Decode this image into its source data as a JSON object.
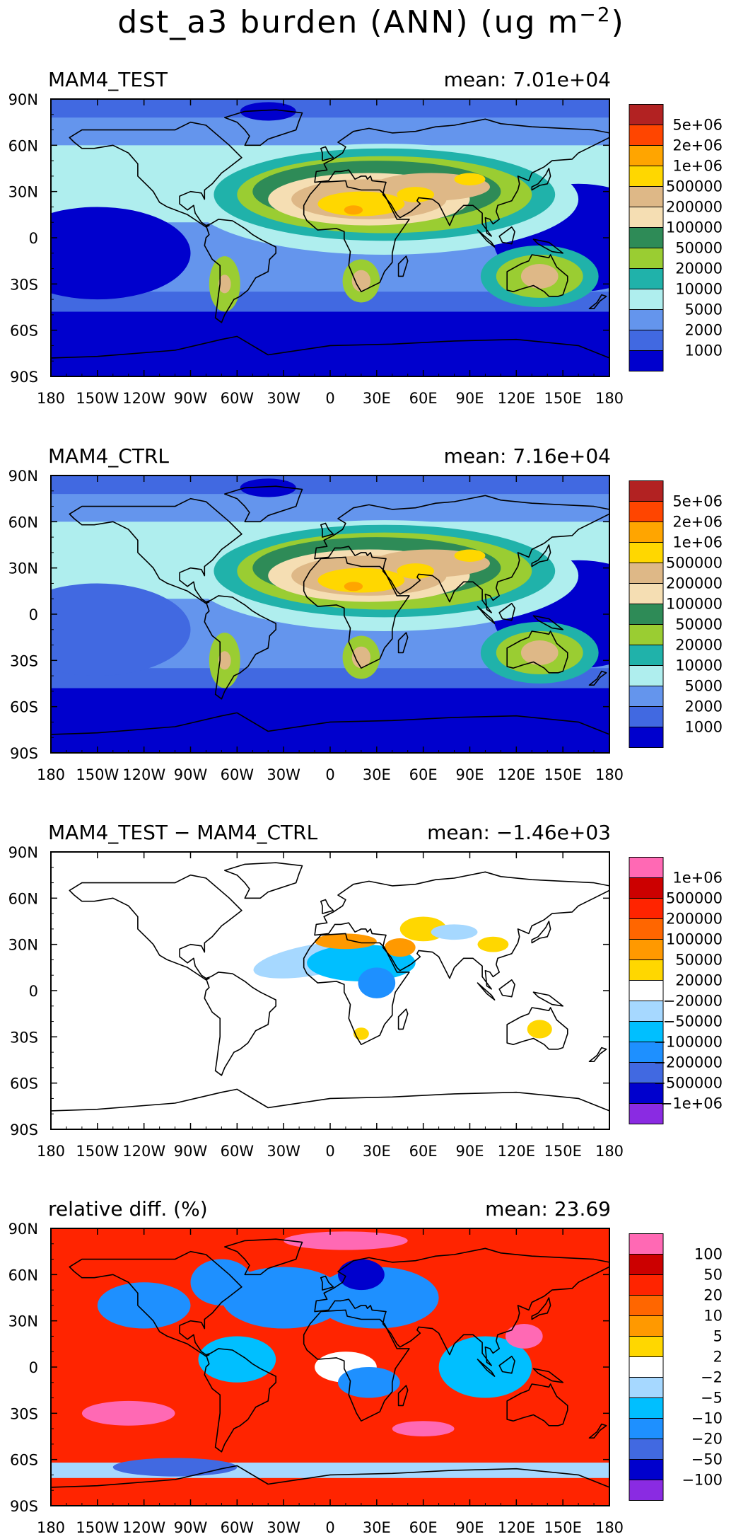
{
  "figure": {
    "title_main": "dst_a3 burden (ANN) (ug m",
    "title_sup": "−2",
    "title_end": ")"
  },
  "chart_data": [
    {
      "type": "heatmap",
      "title": "MAM4_TEST",
      "mean_label": "mean: 7.01e+04",
      "x_ticks": [
        "180",
        "150W",
        "120W",
        "90W",
        "60W",
        "30W",
        "0",
        "30E",
        "60E",
        "90E",
        "120E",
        "150E",
        "180"
      ],
      "y_ticks": [
        "90N",
        "60N",
        "30N",
        "0",
        "30S",
        "60S",
        "90S"
      ],
      "colorbar": {
        "labels": [
          "5e+06",
          "2e+06",
          "1e+06",
          "500000",
          "200000",
          "100000",
          "50000",
          "20000",
          "10000",
          "5000",
          "2000",
          "1000"
        ],
        "colors": [
          "#b22222",
          "#ff4500",
          "#ffa500",
          "#ffd700",
          "#deb887",
          "#f5deb3",
          "#2e8b57",
          "#9acd32",
          "#20b2aa",
          "#afeeee",
          "#6495ed",
          "#4169e1",
          "#0000cd"
        ]
      },
      "land_fill": "#6495ed"
    },
    {
      "type": "heatmap",
      "title": "MAM4_CTRL",
      "mean_label": "mean: 7.16e+04",
      "x_ticks": [
        "180",
        "150W",
        "120W",
        "90W",
        "60W",
        "30W",
        "0",
        "30E",
        "60E",
        "90E",
        "120E",
        "150E",
        "180"
      ],
      "y_ticks": [
        "90N",
        "60N",
        "30N",
        "0",
        "30S",
        "60S",
        "90S"
      ],
      "colorbar": {
        "labels": [
          "5e+06",
          "2e+06",
          "1e+06",
          "500000",
          "200000",
          "100000",
          "50000",
          "20000",
          "10000",
          "5000",
          "2000",
          "1000"
        ],
        "colors": [
          "#b22222",
          "#ff4500",
          "#ffa500",
          "#ffd700",
          "#deb887",
          "#f5deb3",
          "#2e8b57",
          "#9acd32",
          "#20b2aa",
          "#afeeee",
          "#6495ed",
          "#4169e1",
          "#0000cd"
        ]
      },
      "land_fill": "#6495ed"
    },
    {
      "type": "heatmap",
      "title": "MAM4_TEST − MAM4_CTRL",
      "mean_label": "mean: −1.46e+03",
      "x_ticks": [
        "180",
        "150W",
        "120W",
        "90W",
        "60W",
        "30W",
        "0",
        "30E",
        "60E",
        "90E",
        "120E",
        "150E",
        "180"
      ],
      "y_ticks": [
        "90N",
        "60N",
        "30N",
        "0",
        "30S",
        "60S",
        "90S"
      ],
      "colorbar": {
        "labels": [
          "1e+06",
          "500000",
          "200000",
          "100000",
          "50000",
          "20000",
          "−20000",
          "−50000",
          "−100000",
          "−200000",
          "−500000",
          "−1e+06"
        ],
        "colors": [
          "#ff69b4",
          "#cc0000",
          "#ff2400",
          "#ff6600",
          "#ff9900",
          "#ffd700",
          "#ffffff",
          "#a6d8ff",
          "#00bfff",
          "#1e90ff",
          "#4169e1",
          "#0000cd",
          "#8a2be2"
        ]
      },
      "land_fill": "#ffffff"
    },
    {
      "type": "heatmap",
      "title": "relative diff. (%)",
      "mean_label": "mean: 23.69",
      "x_ticks": [
        "180",
        "150W",
        "120W",
        "90W",
        "60W",
        "30W",
        "0",
        "30E",
        "60E",
        "90E",
        "120E",
        "150E",
        "180"
      ],
      "y_ticks": [
        "90N",
        "60N",
        "30N",
        "0",
        "30S",
        "60S",
        "90S"
      ],
      "colorbar": {
        "labels": [
          "100",
          "50",
          "20",
          "10",
          "5",
          "2",
          "−2",
          "−5",
          "−10",
          "−20",
          "−50",
          "−100"
        ],
        "colors": [
          "#ff69b4",
          "#cc0000",
          "#ff2400",
          "#ff6600",
          "#ff9900",
          "#ffd700",
          "#ffffff",
          "#a6d8ff",
          "#00bfff",
          "#1e90ff",
          "#4169e1",
          "#0000cd",
          "#8a2be2"
        ]
      },
      "land_fill": "#ff2400"
    }
  ]
}
